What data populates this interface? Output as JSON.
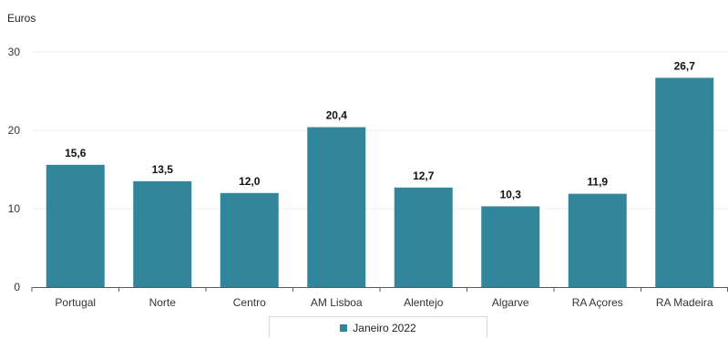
{
  "chart_data": {
    "type": "bar",
    "unit_label": "Euros",
    "categories": [
      "Portugal",
      "Norte",
      "Centro",
      "AM Lisboa",
      "Alentejo",
      "Algarve",
      "RA Açores",
      "RA Madeira"
    ],
    "series": [
      {
        "name": "Janeiro 2022",
        "values": [
          15.6,
          13.5,
          12.0,
          20.4,
          12.7,
          10.3,
          11.9,
          26.7
        ],
        "data_labels": [
          "15,6",
          "13,5",
          "12,0",
          "20,4",
          "12,7",
          "10,3",
          "11,9",
          "26,7"
        ],
        "color": "#31869b"
      }
    ],
    "yticks": [
      0,
      10,
      20,
      30
    ],
    "ylim": [
      0,
      30
    ],
    "grid": true,
    "legend_position": "bottom"
  }
}
